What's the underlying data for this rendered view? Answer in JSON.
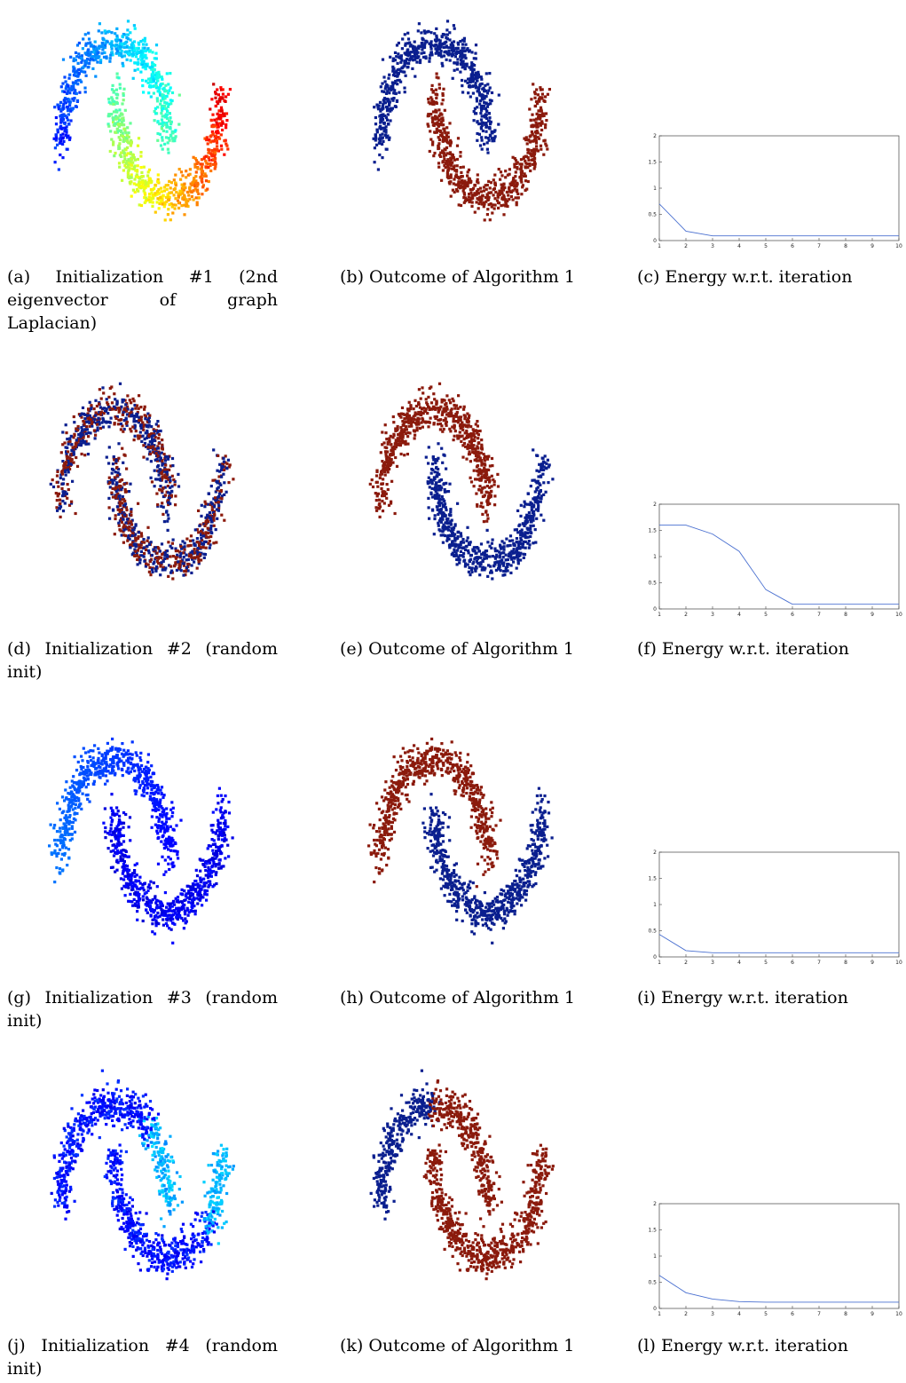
{
  "colors": {
    "blue_dark": "#0a1f8f",
    "red_dark": "#8b1a0c",
    "line_blue": "#4a70d0",
    "jet": [
      "#00007f",
      "#0000ff",
      "#007fff",
      "#00ffff",
      "#7fff7f",
      "#ffff00",
      "#ff7f00"
    ]
  },
  "figure": {
    "rows": [
      {
        "init_caption": "(a) Initialization #1 (2nd eigenvector of graph Laplacian)",
        "init_coloring": "jet-gradient-along-moons",
        "outcome_caption": "(b) Outcome of Algorithm 1",
        "outcome_coloring": "top-blue-bottom-red",
        "energy_caption": "(c) Energy w.r.t. iteration"
      },
      {
        "init_caption": "(d) Initialization #2 (random init)",
        "init_coloring": "random-blue-red",
        "outcome_caption": "(e) Outcome of Algorithm 1",
        "outcome_coloring": "top-red-bottom-blue",
        "energy_caption": "(f) Energy w.r.t. iteration"
      },
      {
        "init_caption": "(g) Initialization #3 (random init)",
        "init_coloring": "blue-shades",
        "outcome_caption": "(h) Outcome of Algorithm 1",
        "outcome_coloring": "top-red-bottom-blue",
        "energy_caption": "(i) Energy w.r.t. iteration"
      },
      {
        "init_caption": "(j) Initialization #4 (random init)",
        "init_coloring": "blue-shades-cyan-middle",
        "outcome_caption": "(k) Outcome of Algorithm 1",
        "outcome_coloring": "left-blue-right-red",
        "energy_caption": "(l) Energy w.r.t. iteration"
      }
    ]
  },
  "chart_data": [
    {
      "type": "line",
      "id": "c",
      "x": [
        1,
        2,
        3,
        4,
        5,
        6,
        7,
        8,
        9,
        10
      ],
      "y": [
        0.7,
        0.18,
        0.09,
        0.09,
        0.09,
        0.09,
        0.09,
        0.09,
        0.09,
        0.09
      ],
      "xlim": [
        1,
        10
      ],
      "ylim": [
        0,
        2
      ],
      "xticks": [
        "1",
        "2",
        "3",
        "4",
        "5",
        "6",
        "7",
        "8",
        "9",
        "10"
      ],
      "yticks": [
        "0",
        "0.5",
        "1",
        "1.5",
        "2"
      ]
    },
    {
      "type": "line",
      "id": "f",
      "x": [
        1,
        2,
        3,
        4,
        5,
        6,
        7,
        8,
        9,
        10
      ],
      "y": [
        1.6,
        1.6,
        1.43,
        1.1,
        0.37,
        0.09,
        0.09,
        0.09,
        0.09,
        0.09
      ],
      "xlim": [
        1,
        10
      ],
      "ylim": [
        0,
        2
      ],
      "xticks": [
        "1",
        "2",
        "3",
        "4",
        "5",
        "6",
        "7",
        "8",
        "9",
        "10"
      ],
      "yticks": [
        "0",
        "0.5",
        "1",
        "1.5",
        "2"
      ]
    },
    {
      "type": "line",
      "id": "i",
      "x": [
        1,
        2,
        3,
        4,
        5,
        6,
        7,
        8,
        9,
        10
      ],
      "y": [
        0.43,
        0.12,
        0.08,
        0.08,
        0.08,
        0.08,
        0.08,
        0.08,
        0.08,
        0.08
      ],
      "xlim": [
        1,
        10
      ],
      "ylim": [
        0,
        2
      ],
      "xticks": [
        "1",
        "2",
        "3",
        "4",
        "5",
        "6",
        "7",
        "8",
        "9",
        "10"
      ],
      "yticks": [
        "0",
        "0.5",
        "1",
        "1.5",
        "2"
      ]
    },
    {
      "type": "line",
      "id": "l",
      "x": [
        1,
        2,
        3,
        4,
        5,
        6,
        7,
        8,
        9,
        10
      ],
      "y": [
        0.63,
        0.3,
        0.18,
        0.13,
        0.12,
        0.12,
        0.12,
        0.12,
        0.12,
        0.12
      ],
      "xlim": [
        1,
        10
      ],
      "ylim": [
        0,
        2
      ],
      "xticks": [
        "1",
        "2",
        "3",
        "4",
        "5",
        "6",
        "7",
        "8",
        "9",
        "10"
      ],
      "yticks": [
        "0",
        "0.5",
        "1",
        "1.5",
        "2"
      ]
    }
  ]
}
